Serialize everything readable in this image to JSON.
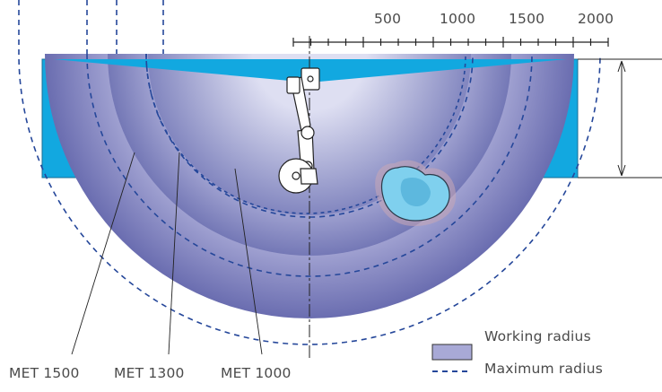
{
  "scale": {
    "ticks": [
      "500",
      "1000",
      "1500",
      "2000"
    ]
  },
  "radius_labels": [
    "MET 1500",
    "MET 1300",
    "MET 1000"
  ],
  "legend": {
    "working": "Working radius",
    "maximum": "Maximum radius"
  },
  "colors": {
    "water": "#12a8e0",
    "working_dark": "#6c6fb2",
    "working_light": "#cfd0ea",
    "dashed": "#25479a",
    "line": "#222222"
  }
}
